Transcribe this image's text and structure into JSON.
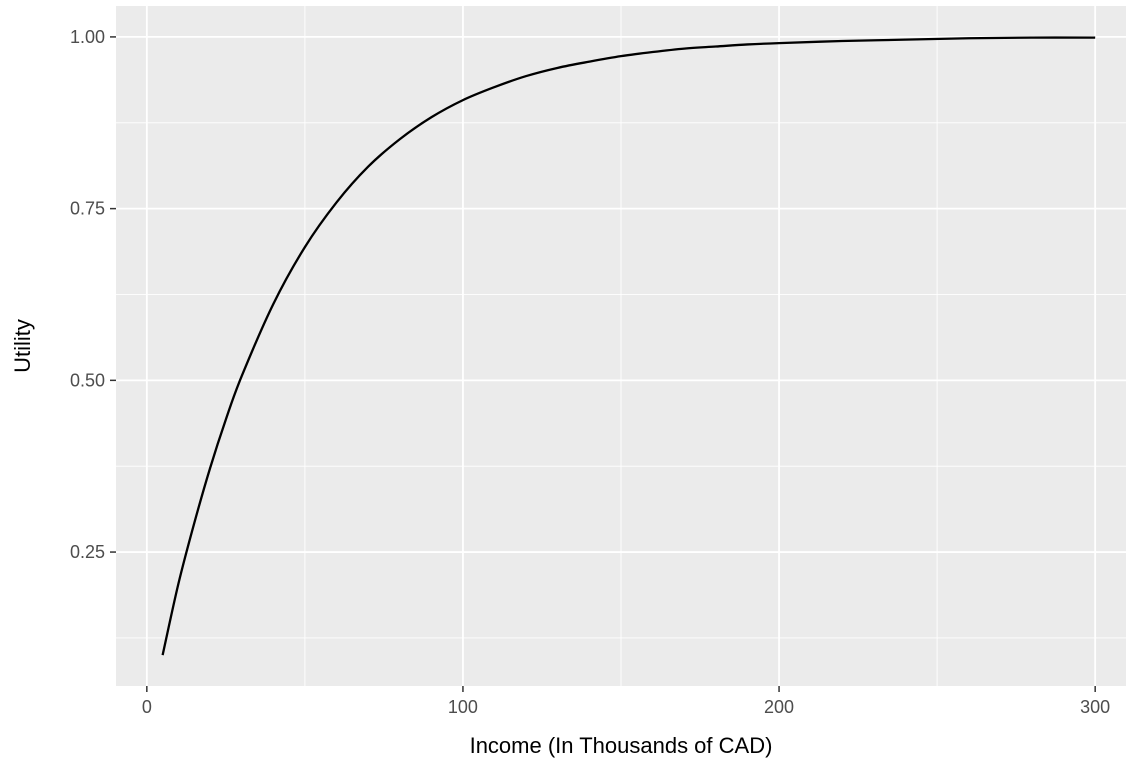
{
  "chart_data": {
    "type": "line",
    "title": "",
    "xlabel": "Income (In Thousands of CAD)",
    "ylabel": "Utility",
    "xlim": [
      -9.75,
      309.75
    ],
    "ylim": [
      0.055,
      1.045
    ],
    "x_ticks": [
      0,
      100,
      200,
      300
    ],
    "x_tick_labels": [
      "0",
      "100",
      "200",
      "300"
    ],
    "y_ticks": [
      0.25,
      0.5,
      0.75,
      1.0
    ],
    "y_tick_labels": [
      "0.25",
      "0.50",
      "0.75",
      "1.00"
    ],
    "grid": true,
    "legend": "none",
    "panel_background": "#ebebeb",
    "grid_color": "#ffffff",
    "line_color": "#000000",
    "series": [
      {
        "x": [
          5,
          10,
          15,
          20,
          25,
          30,
          40,
          50,
          60,
          70,
          80,
          90,
          100,
          110,
          120,
          130,
          140,
          150,
          160,
          170,
          180,
          190,
          200,
          220,
          240,
          260,
          280,
          300
        ],
        "y": [
          0.1,
          0.204,
          0.292,
          0.372,
          0.443,
          0.506,
          0.611,
          0.694,
          0.759,
          0.811,
          0.851,
          0.883,
          0.908,
          0.927,
          0.943,
          0.955,
          0.964,
          0.972,
          0.978,
          0.983,
          0.986,
          0.989,
          0.991,
          0.994,
          0.996,
          0.998,
          0.999,
          0.999
        ]
      }
    ]
  }
}
